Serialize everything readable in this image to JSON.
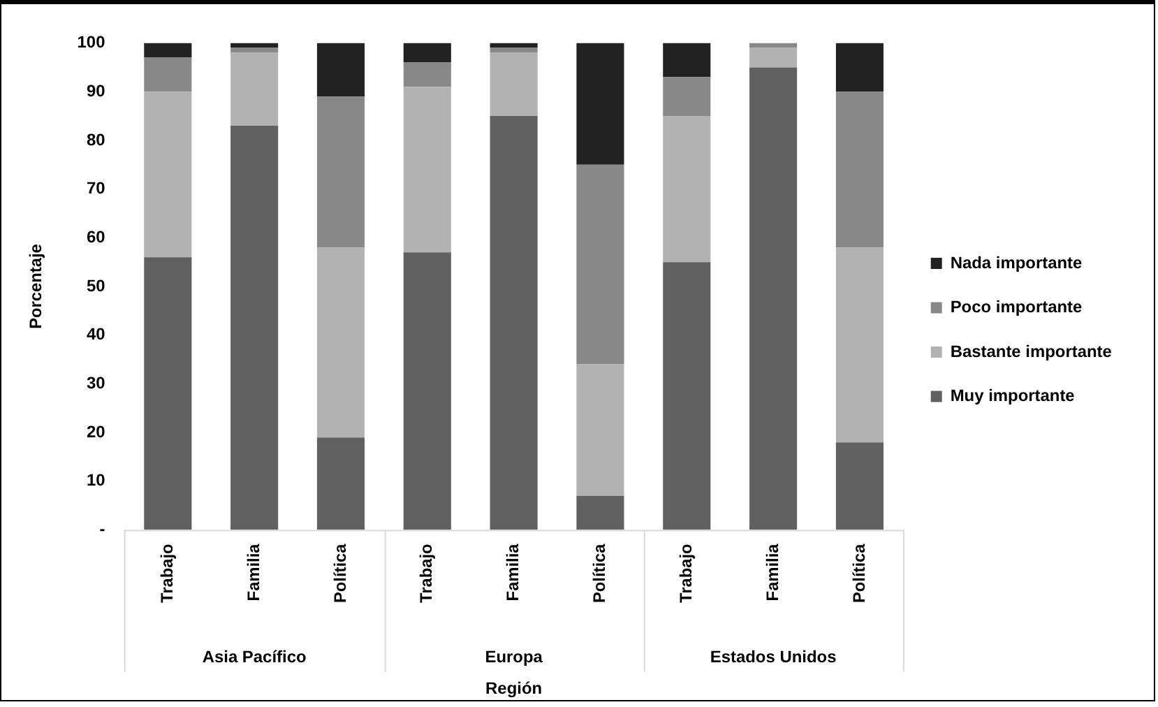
{
  "chart_data": {
    "type": "bar",
    "stacked": true,
    "xlabel": "Región",
    "ylabel": "Porcentaje",
    "categories": [
      "Trabajo",
      "Familia",
      "Política",
      "Trabajo",
      "Familia",
      "Política",
      "Trabajo",
      "Familia",
      "Política"
    ],
    "annotations": [
      "Asia Pacífico",
      "Europa",
      "Estados Unidos"
    ],
    "series": [
      {
        "name": "Muy importante",
        "color": "#606060",
        "values": [
          56,
          83,
          19,
          57,
          85,
          7,
          55,
          95,
          18
        ]
      },
      {
        "name": "Bastante importante",
        "color": "#b2b2b2",
        "values": [
          34,
          15,
          39,
          34,
          13,
          27,
          30,
          4,
          40
        ]
      },
      {
        "name": "Poco importante",
        "color": "#888888",
        "values": [
          7,
          1,
          31,
          5,
          1,
          41,
          8,
          1,
          32
        ]
      },
      {
        "name": "Nada importante",
        "color": "#222222",
        "values": [
          3,
          1,
          11,
          4,
          1,
          25,
          7,
          0,
          10
        ]
      }
    ],
    "ylim": [
      0,
      100
    ],
    "yticks": [
      {
        "value": 0,
        "label": "-"
      },
      10,
      20,
      30,
      40,
      50,
      60,
      70,
      80,
      90,
      100
    ],
    "grid": false,
    "legend": "right"
  }
}
